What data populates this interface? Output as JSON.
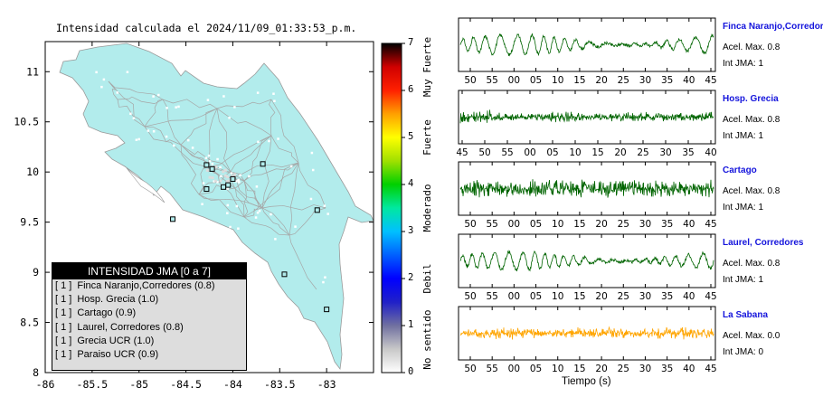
{
  "map": {
    "title": "Intensidad calculada el 2024/11/09_01:33:53_p.m.",
    "x_ticks": [
      "-86",
      "-85.5",
      "-85",
      "-84.5",
      "-84",
      "-83.5",
      "-83"
    ],
    "y_ticks": [
      "11",
      "10.5",
      "10",
      "9.5",
      "9",
      "8.5",
      "8"
    ],
    "land_color": "#b2ecec",
    "stations": [
      {
        "lon": -84.28,
        "lat": 10.07
      },
      {
        "lon": -84.22,
        "lat": 10.03
      },
      {
        "lon": -84.0,
        "lat": 9.93
      },
      {
        "lon": -84.05,
        "lat": 9.87
      },
      {
        "lon": -84.1,
        "lat": 9.85
      },
      {
        "lon": -83.68,
        "lat": 10.08
      },
      {
        "lon": -84.28,
        "lat": 9.83
      },
      {
        "lon": -83.1,
        "lat": 9.62
      },
      {
        "lon": -84.64,
        "lat": 9.53
      },
      {
        "lon": -83.45,
        "lat": 8.98
      },
      {
        "lon": -83.0,
        "lat": 8.63
      }
    ]
  },
  "legend": {
    "title": "INTENSIDAD JMA [0 a 7]",
    "items": [
      {
        "level": "[ 1 ]",
        "label": "Finca Naranjo,Corredores (0.8)"
      },
      {
        "level": "[ 1 ]",
        "label": "Hosp. Grecia (1.0)"
      },
      {
        "level": "[ 1 ]",
        "label": "Cartago (0.9)"
      },
      {
        "level": "[ 1 ]",
        "label": "Laurel, Corredores (0.8)"
      },
      {
        "level": "[ 1 ]",
        "label": "Grecia UCR (1.0)"
      },
      {
        "level": "[ 1 ]",
        "label": "Paraiso UCR (0.9)"
      }
    ]
  },
  "colorbar": {
    "ticks": [
      "0",
      "1",
      "2",
      "3",
      "4",
      "5",
      "6",
      "7"
    ],
    "categories": [
      "No sentido",
      "Debil",
      "Moderado",
      "Fuerte",
      "Muy Fuerte"
    ]
  },
  "chart_data": {
    "type": "line",
    "xlabel": "Tiempo (s)",
    "series": [
      {
        "name": "Finca Naranjo,Corredores",
        "accel_max": "Acel. Max. 0.8",
        "int_jma": "Int JMA: 1",
        "color": "#006400",
        "x_ticks": [
          "50",
          "55",
          "00",
          "05",
          "10",
          "15",
          "20",
          "25",
          "30",
          "35",
          "40",
          "45"
        ]
      },
      {
        "name": "Hosp. Grecia",
        "accel_max": "Acel. Max. 0.8",
        "int_jma": "Int JMA: 1",
        "color": "#006400",
        "x_ticks": [
          "45",
          "50",
          "55",
          "00",
          "05",
          "10",
          "15",
          "20",
          "25",
          "30",
          "35",
          "40"
        ]
      },
      {
        "name": "Cartago",
        "accel_max": "Acel. Max. 0.8",
        "int_jma": "Int JMA: 1",
        "color": "#006400",
        "x_ticks": [
          "50",
          "55",
          "00",
          "05",
          "10",
          "15",
          "20",
          "25",
          "30",
          "35",
          "40",
          "45"
        ]
      },
      {
        "name": "Laurel, Corredores",
        "accel_max": "Acel. Max. 0.8",
        "int_jma": "Int JMA: 1",
        "color": "#006400",
        "x_ticks": [
          "50",
          "55",
          "00",
          "05",
          "10",
          "15",
          "20",
          "25",
          "30",
          "35",
          "40",
          "45"
        ]
      },
      {
        "name": "La Sabana",
        "accel_max": "Acel. Max. 0.0",
        "int_jma": "Int JMA: 0",
        "color": "#ffa500",
        "x_ticks": [
          "50",
          "55",
          "00",
          "05",
          "10",
          "15",
          "20",
          "25",
          "30",
          "35",
          "40",
          "45"
        ]
      }
    ]
  }
}
